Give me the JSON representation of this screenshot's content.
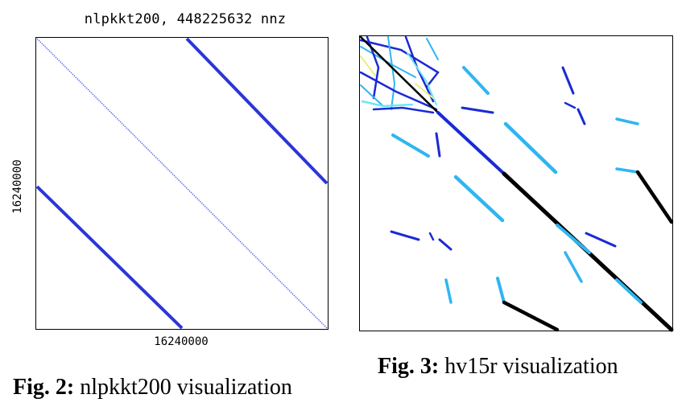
{
  "fig2": {
    "title": "nlpkkt200, 448225632 nnz",
    "xtick": "16240000",
    "ytick": "16240000",
    "caption_label": "Fig. 2:",
    "caption_text": "nlpkkt200 visualization",
    "colors": {
      "band": "#2b35d8",
      "diag": "#5a63ee",
      "frame": "#000000"
    }
  },
  "fig3": {
    "caption_label": "Fig. 3:",
    "caption_text": "hv15r visualization",
    "colors": {
      "dark": "#000000",
      "blue": "#1a2ad6",
      "lightblue": "#2fb6f0",
      "cyan": "#6fe6f3",
      "yellow": "#e8f07a"
    }
  }
}
